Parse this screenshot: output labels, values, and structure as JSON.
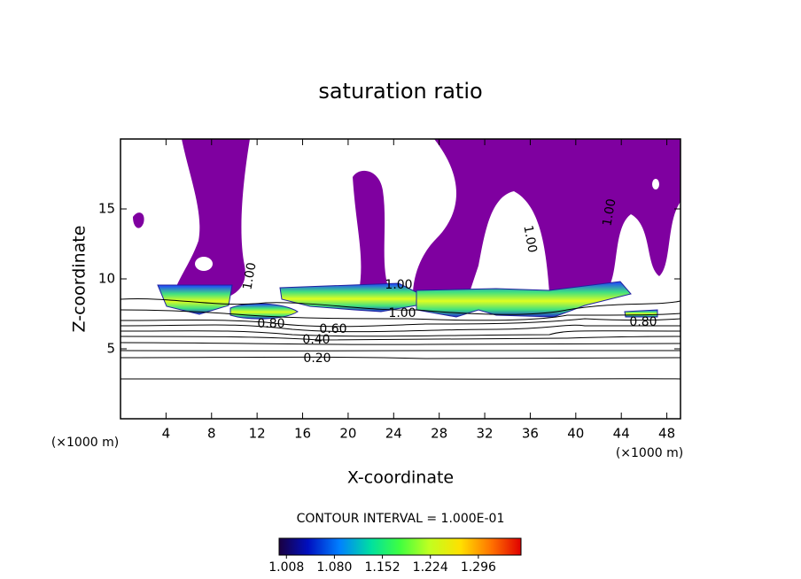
{
  "chart_data": {
    "type": "contour",
    "title": "saturation ratio",
    "x_label": "X-coordinate",
    "y_label": "Z-coordinate",
    "x_unit_left": "(×1000 m)",
    "x_unit_right": "(×1000 m)",
    "xlim": [
      0,
      49.2
    ],
    "ylim": [
      0,
      20
    ],
    "xticks": [
      4,
      8,
      12,
      16,
      20,
      24,
      28,
      32,
      36,
      40,
      44,
      48
    ],
    "yticks": [
      5,
      10,
      15
    ],
    "contour_labels": [
      "1.00",
      "1.00",
      "1.00",
      "1.00",
      "1.00",
      "0.80",
      "0.80",
      "0.60",
      "0.40",
      "0.20"
    ],
    "fill_color": "#7f00a0",
    "contour_interval": "CONTOUR INTERVAL = 1.000E-01",
    "colorbar": {
      "lim": [
        0.997,
        1.36
      ],
      "ticks": [
        {
          "value": 1.008,
          "label": "1.008"
        },
        {
          "value": 1.08,
          "label": "1.080"
        },
        {
          "value": 1.152,
          "label": "1.152"
        },
        {
          "value": 1.224,
          "label": "1.224"
        },
        {
          "value": 1.296,
          "label": "1.296"
        }
      ]
    }
  }
}
